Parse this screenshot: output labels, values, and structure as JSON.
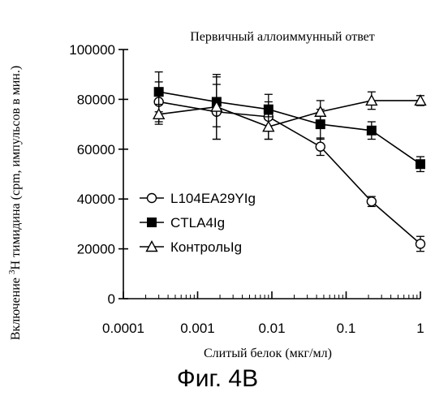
{
  "figure_label": "Фиг. 4B",
  "chart_data": {
    "type": "line",
    "title": "Первичный аллоиммунный ответ",
    "xlabel": "Слитый белок (мкг/мл)",
    "ylabel_pre": "Включение ",
    "ylabel_sup": "3",
    "ylabel_post": "H тимидина (cpm, импульсов в мин.)",
    "x_scale": "log",
    "xlim": [
      0.0001,
      1
    ],
    "ylim": [
      0,
      100000
    ],
    "x_ticks": [
      {
        "value": 0.0001,
        "label": "0.0001"
      },
      {
        "value": 0.001,
        "label": "0.001"
      },
      {
        "value": 0.01,
        "label": "0.01"
      },
      {
        "value": 0.1,
        "label": "0.1"
      },
      {
        "value": 1,
        "label": "1"
      }
    ],
    "y_ticks": [
      {
        "value": 0,
        "label": "0"
      },
      {
        "value": 20000,
        "label": "20000"
      },
      {
        "value": 40000,
        "label": "40000"
      },
      {
        "value": 60000,
        "label": "60000"
      },
      {
        "value": 80000,
        "label": "80000"
      },
      {
        "value": 100000,
        "label": "100000"
      }
    ],
    "legend_position": "left-middle",
    "series": [
      {
        "name": "L104EA29YIg",
        "marker": "open-circle",
        "x": [
          0.0003,
          0.0018,
          0.009,
          0.045,
          0.22,
          1
        ],
        "y": [
          79000,
          75000,
          73000,
          61000,
          39000,
          22000
        ],
        "err": [
          8000,
          11000,
          9000,
          3500,
          2000,
          3000
        ]
      },
      {
        "name": "CTLA4Ig",
        "marker": "filled-square",
        "x": [
          0.0003,
          0.0018,
          0.009,
          0.045,
          0.22,
          1
        ],
        "y": [
          83000,
          79000,
          76000,
          70000,
          67500,
          54000
        ],
        "err": [
          8000,
          10000,
          3000,
          6000,
          3500,
          3000
        ]
      },
      {
        "name": "КонтрольIg",
        "marker": "open-triangle",
        "x": [
          0.0003,
          0.0018,
          0.009,
          0.045,
          0.22,
          1
        ],
        "y": [
          74000,
          77000,
          69000,
          75000,
          79500,
          79500
        ],
        "err": [
          4000,
          13000,
          5000,
          4500,
          3500,
          2000
        ]
      }
    ]
  }
}
